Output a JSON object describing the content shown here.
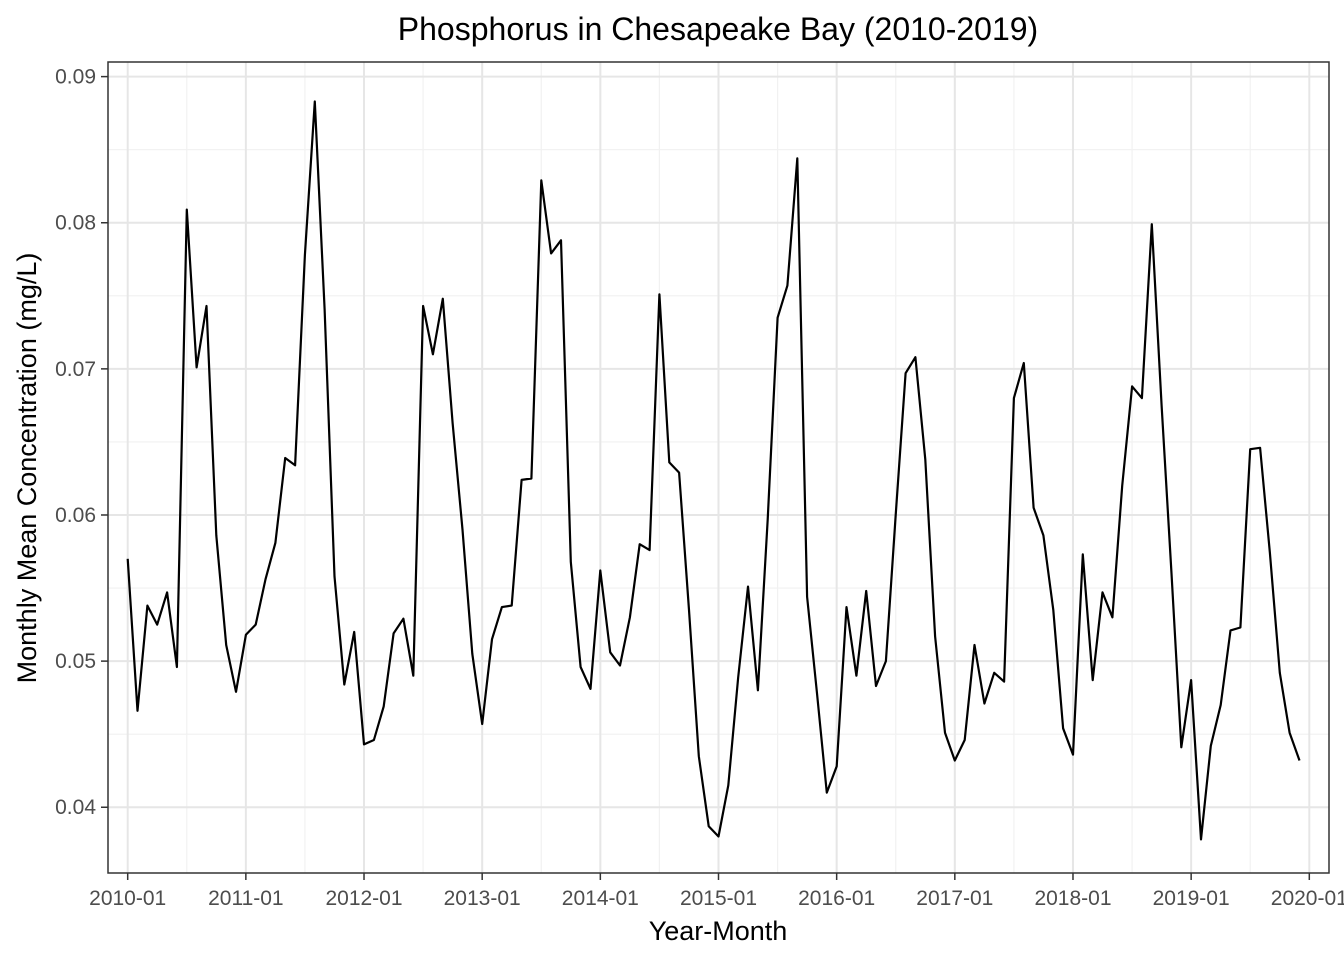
{
  "chart_data": {
    "type": "line",
    "title": "Phosphorus in Chesapeake Bay (2010-2019)",
    "xlabel": "Year-Month",
    "ylabel": "Monthly Mean Concentration (mg/L)",
    "xlim": [
      "2009-11",
      "2020-03"
    ],
    "ylim": [
      0.0355,
      0.091
    ],
    "grid": true,
    "x_ticks": [
      "2010-01",
      "2011-01",
      "2012-01",
      "2013-01",
      "2014-01",
      "2015-01",
      "2016-01",
      "2017-01",
      "2018-01",
      "2019-01",
      "2020-01"
    ],
    "y_ticks": [
      0.04,
      0.05,
      0.06,
      0.07,
      0.08,
      0.09
    ],
    "y_tick_labels": [
      "0.04",
      "0.05",
      "0.06",
      "0.07",
      "0.08",
      "0.09"
    ],
    "line_color": "#000000",
    "series": [
      {
        "x": [
          "2010-01",
          "2010-02",
          "2010-03",
          "2010-04",
          "2010-05",
          "2010-06",
          "2010-07",
          "2010-08",
          "2010-09",
          "2010-10",
          "2010-11",
          "2010-12",
          "2011-01",
          "2011-02",
          "2011-03",
          "2011-04",
          "2011-05",
          "2011-06",
          "2011-07",
          "2011-08",
          "2011-09",
          "2011-10",
          "2011-11",
          "2011-12",
          "2012-01",
          "2012-02",
          "2012-03",
          "2012-04",
          "2012-05",
          "2012-06",
          "2012-07",
          "2012-08",
          "2012-09",
          "2012-10",
          "2012-11",
          "2012-12",
          "2013-01",
          "2013-02",
          "2013-03",
          "2013-04",
          "2013-05",
          "2013-06",
          "2013-07",
          "2013-08",
          "2013-09",
          "2013-10",
          "2013-11",
          "2013-12",
          "2014-01",
          "2014-02",
          "2014-03",
          "2014-04",
          "2014-05",
          "2014-06",
          "2014-07",
          "2014-08",
          "2014-09",
          "2014-10",
          "2014-11",
          "2014-12",
          "2015-01",
          "2015-02",
          "2015-03",
          "2015-04",
          "2015-05",
          "2015-06",
          "2015-07",
          "2015-08",
          "2015-09",
          "2015-10",
          "2015-11",
          "2015-12",
          "2016-01",
          "2016-02",
          "2016-03",
          "2016-04",
          "2016-05",
          "2016-06",
          "2016-07",
          "2016-08",
          "2016-09",
          "2016-10",
          "2016-11",
          "2016-12",
          "2017-01",
          "2017-02",
          "2017-03",
          "2017-04",
          "2017-05",
          "2017-06",
          "2017-07",
          "2017-08",
          "2017-09",
          "2017-10",
          "2017-11",
          "2017-12",
          "2018-01",
          "2018-02",
          "2018-03",
          "2018-04",
          "2018-05",
          "2018-06",
          "2018-07",
          "2018-08",
          "2018-09",
          "2018-10",
          "2018-11",
          "2018-12",
          "2019-01",
          "2019-02",
          "2019-03",
          "2019-04",
          "2019-05",
          "2019-06",
          "2019-07",
          "2019-08",
          "2019-09",
          "2019-10",
          "2019-11",
          "2019-12"
        ],
        "values": [
          0.057,
          0.0466,
          0.0538,
          0.0525,
          0.0547,
          0.0496,
          0.0809,
          0.0701,
          0.0743,
          0.0586,
          0.0511,
          0.0479,
          0.0518,
          0.0525,
          0.0556,
          0.0581,
          0.0639,
          0.0634,
          0.0778,
          0.0883,
          0.0741,
          0.0558,
          0.0484,
          0.052,
          0.0443,
          0.0446,
          0.0469,
          0.0519,
          0.0529,
          0.049,
          0.0743,
          0.071,
          0.0748,
          0.0663,
          0.059,
          0.0505,
          0.0457,
          0.0515,
          0.0537,
          0.0538,
          0.0624,
          0.0625,
          0.0829,
          0.0779,
          0.0788,
          0.0568,
          0.0496,
          0.0481,
          0.0562,
          0.0506,
          0.0497,
          0.053,
          0.058,
          0.0576,
          0.0751,
          0.0636,
          0.0629,
          0.0535,
          0.0435,
          0.0387,
          0.038,
          0.0415,
          0.0489,
          0.0551,
          0.048,
          0.0597,
          0.0735,
          0.0757,
          0.0844,
          0.0544,
          0.0478,
          0.041,
          0.0428,
          0.0537,
          0.049,
          0.0548,
          0.0483,
          0.05,
          0.06,
          0.0697,
          0.0708,
          0.0638,
          0.0517,
          0.0451,
          0.0432,
          0.0446,
          0.0511,
          0.0471,
          0.0492,
          0.0486,
          0.068,
          0.0704,
          0.0605,
          0.0586,
          0.0535,
          0.0454,
          0.0436,
          0.0573,
          0.0487,
          0.0547,
          0.053,
          0.062,
          0.0688,
          0.068,
          0.0799,
          0.0675,
          0.056,
          0.0441,
          0.0487,
          0.0378,
          0.0442,
          0.047,
          0.0521,
          0.0523,
          0.0645,
          0.0646,
          0.0574,
          0.0492,
          0.0451,
          0.0432
        ]
      }
    ]
  }
}
